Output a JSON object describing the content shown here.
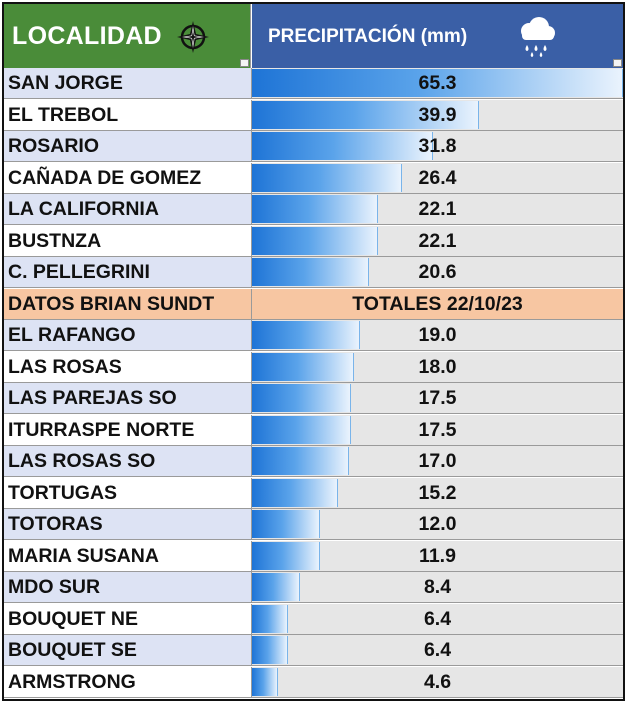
{
  "header": {
    "left_title": "LOCALIDAD",
    "left_icon": "compass-icon",
    "right_title": "PRECIPITACIÓN (mm)",
    "right_icon": "rain-cloud-icon",
    "colors": {
      "left_bg": "#4a8c39",
      "right_bg": "#3a5fa6",
      "bar": "#1e74d6",
      "separator": "#f7c6a2"
    }
  },
  "max_value": 65.3,
  "rows_top": [
    {
      "name": "SAN JORGE",
      "value": "65.3"
    },
    {
      "name": "EL TREBOL",
      "value": "39.9"
    },
    {
      "name": "ROSARIO",
      "value": "31.8"
    },
    {
      "name": "CAÑADA DE GOMEZ",
      "value": "26.4"
    },
    {
      "name": "LA CALIFORNIA",
      "value": "22.1"
    },
    {
      "name": "BUSTNZA",
      "value": "22.1"
    },
    {
      "name": "C. PELLEGRINI",
      "value": "20.6"
    }
  ],
  "separator": {
    "name": "DATOS BRIAN SUNDT",
    "value": "TOTALES  22/10/23"
  },
  "rows_bottom": [
    {
      "name": "EL RAFANGO",
      "value": "19.0"
    },
    {
      "name": "LAS ROSAS",
      "value": "18.0"
    },
    {
      "name": "LAS PAREJAS SO",
      "value": "17.5"
    },
    {
      "name": "ITURRASPE NORTE",
      "value": "17.5"
    },
    {
      "name": "LAS ROSAS SO",
      "value": "17.0"
    },
    {
      "name": "TORTUGAS",
      "value": "15.2"
    },
    {
      "name": "TOTORAS",
      "value": "12.0"
    },
    {
      "name": "MARIA SUSANA",
      "value": "11.9"
    },
    {
      "name": "MDO SUR",
      "value": "8.4"
    },
    {
      "name": "BOUQUET NE",
      "value": "6.4"
    },
    {
      "name": "BOUQUET SE",
      "value": "6.4"
    },
    {
      "name": "ARMSTRONG",
      "value": "4.6"
    }
  ]
}
